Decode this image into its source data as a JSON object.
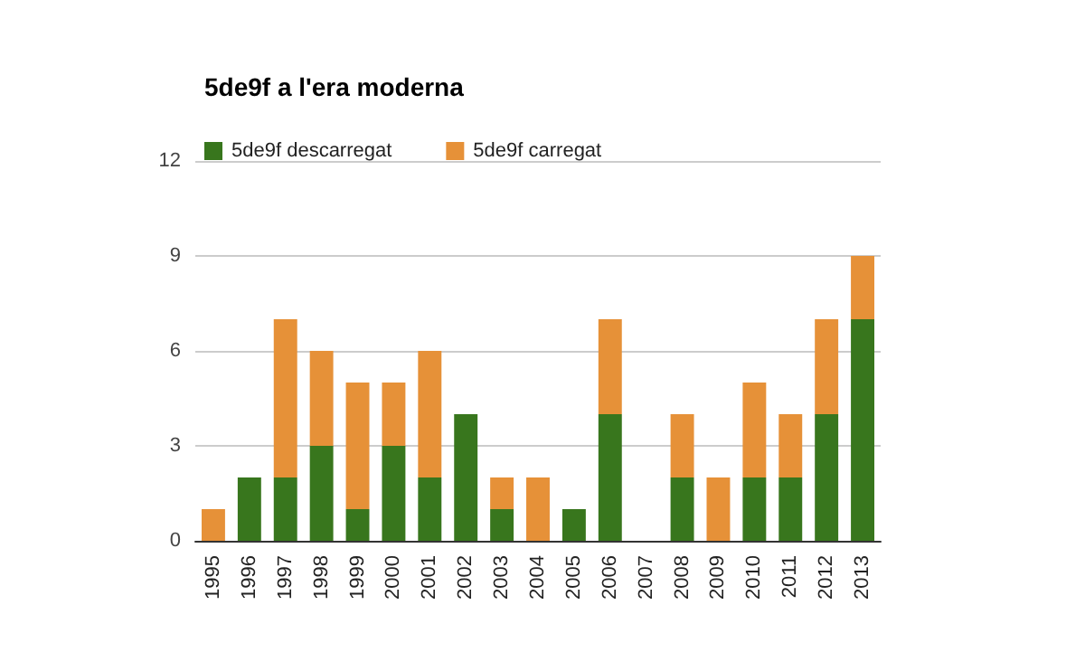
{
  "chart_data": {
    "type": "bar",
    "title": "5de9f a l'era moderna",
    "categories": [
      "1995",
      "1996",
      "1997",
      "1998",
      "1999",
      "2000",
      "2001",
      "2002",
      "2003",
      "2004",
      "2005",
      "2006",
      "2007",
      "2008",
      "2009",
      "2010",
      "2011",
      "2012",
      "2013"
    ],
    "series": [
      {
        "name": "5de9f descarregat",
        "color": "#38761d",
        "values": [
          0,
          2,
          2,
          3,
          1,
          3,
          2,
          4,
          1,
          0,
          1,
          4,
          0,
          2,
          0,
          2,
          2,
          4,
          7
        ]
      },
      {
        "name": "5de9f carregat",
        "color": "#e69138",
        "values": [
          1,
          0,
          5,
          3,
          4,
          2,
          4,
          0,
          1,
          2,
          0,
          3,
          0,
          2,
          2,
          3,
          2,
          3,
          2
        ]
      }
    ],
    "stacked": true,
    "ylim": [
      0,
      12
    ],
    "yticks": [
      0,
      3,
      6,
      9,
      12
    ],
    "grid": "y",
    "legend": "top left"
  }
}
